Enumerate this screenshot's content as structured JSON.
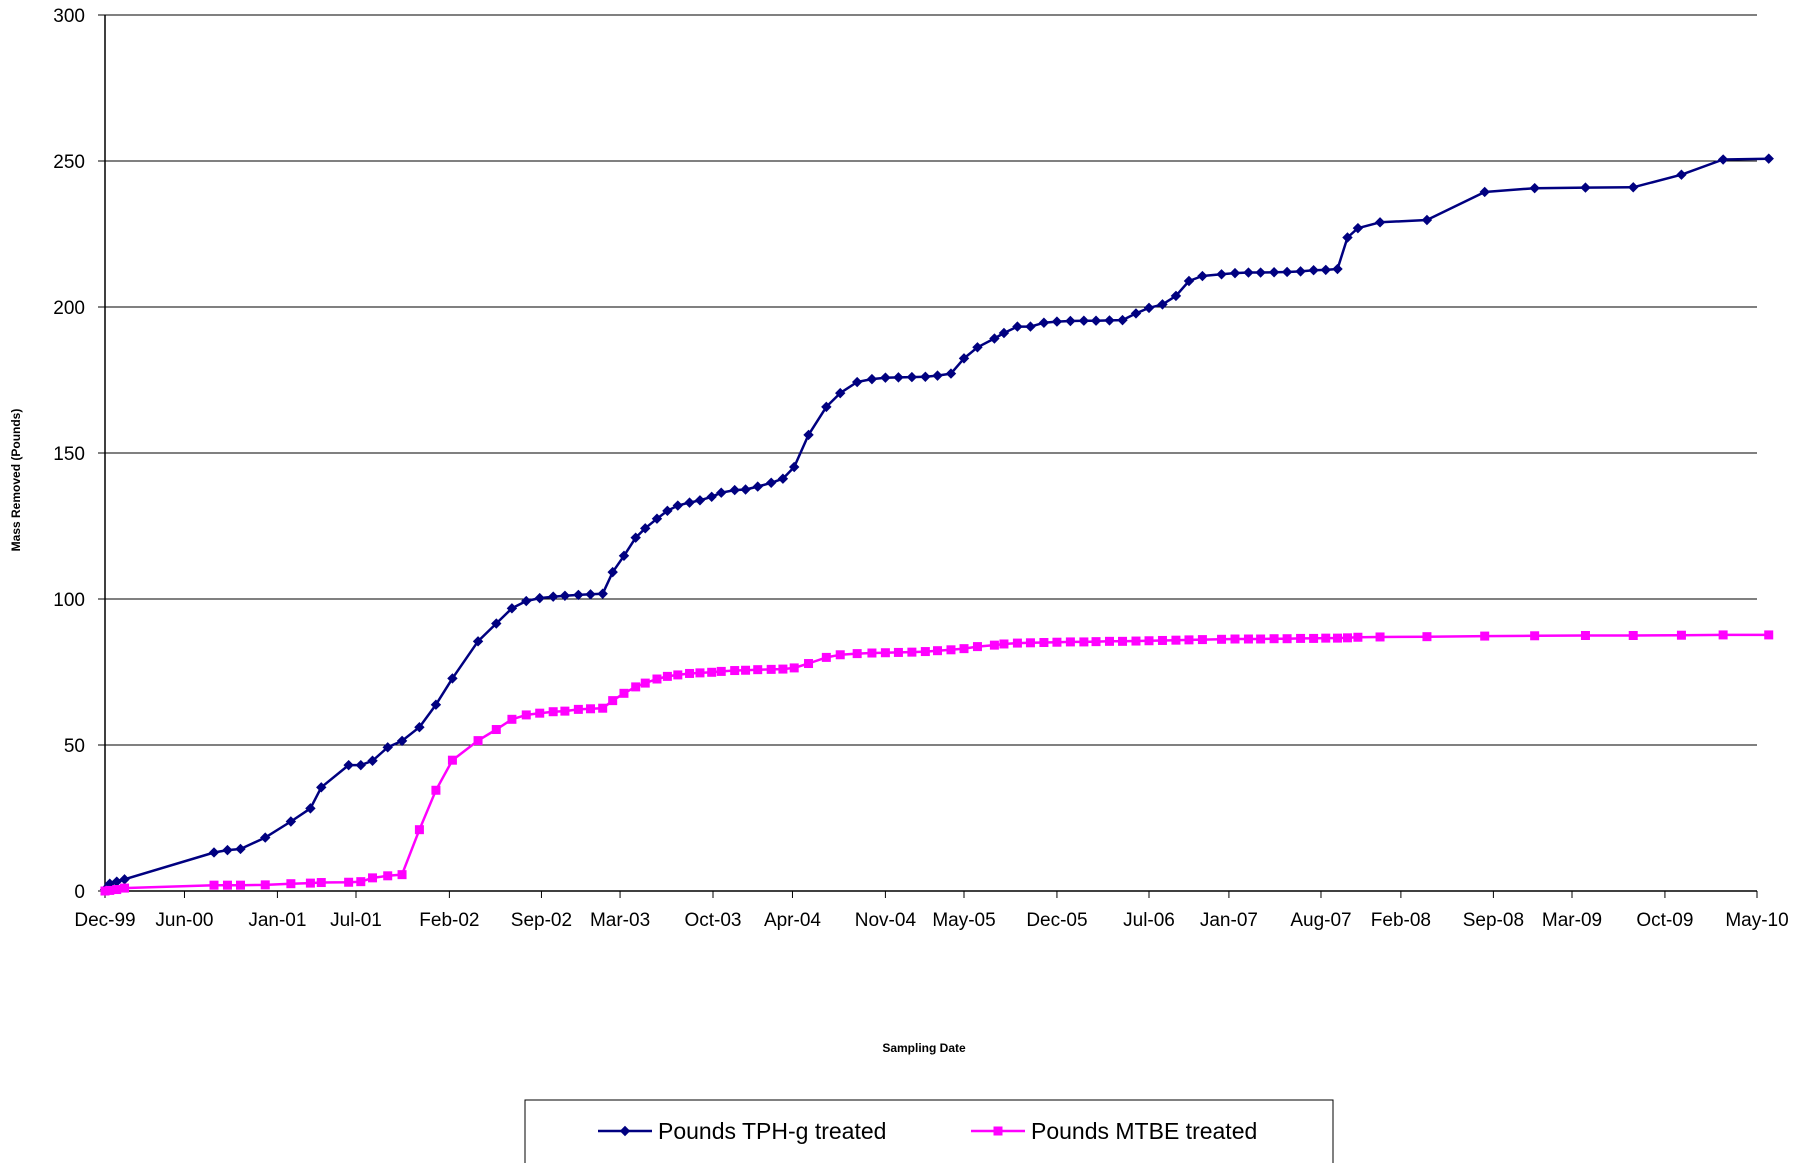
{
  "chart_data": {
    "type": "line",
    "title": "",
    "xlabel": "Sampling Date",
    "ylabel": "Mass Removed (Pounds)",
    "ylim": [
      0,
      300
    ],
    "yticks": [
      "0",
      "50",
      "100",
      "150",
      "200",
      "250",
      "300"
    ],
    "xlim": [
      "1999-12-01",
      "2010-05-01"
    ],
    "xticks": [
      {
        "label": "Dec-99",
        "date": "1999-12-01"
      },
      {
        "label": "Jun-00",
        "date": "2000-06-01"
      },
      {
        "label": "Jan-01",
        "date": "2001-01-01"
      },
      {
        "label": "Jul-01",
        "date": "2001-07-01"
      },
      {
        "label": "Feb-02",
        "date": "2002-02-01"
      },
      {
        "label": "Sep-02",
        "date": "2002-09-01"
      },
      {
        "label": "Mar-03",
        "date": "2003-03-01"
      },
      {
        "label": "Oct-03",
        "date": "2003-10-01"
      },
      {
        "label": "Apr-04",
        "date": "2004-04-01"
      },
      {
        "label": "Nov-04",
        "date": "2004-11-01"
      },
      {
        "label": "May-05",
        "date": "2005-05-01"
      },
      {
        "label": "Dec-05",
        "date": "2005-12-01"
      },
      {
        "label": "Jul-06",
        "date": "2006-07-01"
      },
      {
        "label": "Jan-07",
        "date": "2007-01-01"
      },
      {
        "label": "Aug-07",
        "date": "2007-08-01"
      },
      {
        "label": "Feb-08",
        "date": "2008-02-01"
      },
      {
        "label": "Sep-08",
        "date": "2008-09-01"
      },
      {
        "label": "Mar-09",
        "date": "2009-03-01"
      },
      {
        "label": "Oct-09",
        "date": "2009-10-01"
      },
      {
        "label": "May-10",
        "date": "2010-05-01"
      }
    ],
    "grid": "horizontal",
    "legend_position": "bottom",
    "series": [
      {
        "name": "Pounds TPH-g treated",
        "color": "#000080",
        "marker": "diamond",
        "points": [
          [
            "1999-12-01",
            0.5
          ],
          [
            "1999-12-12",
            2.5
          ],
          [
            "1999-12-28",
            3.2
          ],
          [
            "2000-01-15",
            4.0
          ],
          [
            "2000-08-08",
            13.2
          ],
          [
            "2000-09-08",
            14.0
          ],
          [
            "2000-10-08",
            14.4
          ],
          [
            "2000-12-04",
            18.3
          ],
          [
            "2001-02-01",
            23.8
          ],
          [
            "2001-03-18",
            28.3
          ],
          [
            "2001-04-12",
            35.5
          ],
          [
            "2001-06-14",
            43.1
          ],
          [
            "2001-07-12",
            43.1
          ],
          [
            "2001-08-08",
            44.6
          ],
          [
            "2001-09-12",
            49.2
          ],
          [
            "2001-10-15",
            51.4
          ],
          [
            "2001-11-24",
            56.1
          ],
          [
            "2002-01-01",
            63.8
          ],
          [
            "2002-02-08",
            72.8
          ],
          [
            "2002-04-08",
            85.5
          ],
          [
            "2002-05-20",
            91.6
          ],
          [
            "2002-06-25",
            96.8
          ],
          [
            "2002-07-28",
            99.3
          ],
          [
            "2002-08-28",
            100.3
          ],
          [
            "2002-09-28",
            100.8
          ],
          [
            "2002-10-25",
            101.1
          ],
          [
            "2002-11-25",
            101.4
          ],
          [
            "2002-12-23",
            101.6
          ],
          [
            "2003-01-20",
            101.8
          ],
          [
            "2003-02-12",
            109.2
          ],
          [
            "2003-03-10",
            114.8
          ],
          [
            "2003-04-06",
            121.0
          ],
          [
            "2003-04-28",
            124.2
          ],
          [
            "2003-05-25",
            127.5
          ],
          [
            "2003-06-18",
            130.2
          ],
          [
            "2003-07-12",
            132.0
          ],
          [
            "2003-08-08",
            133.0
          ],
          [
            "2003-09-01",
            133.8
          ],
          [
            "2003-09-28",
            135.0
          ],
          [
            "2003-10-20",
            136.4
          ],
          [
            "2003-11-20",
            137.3
          ],
          [
            "2003-12-15",
            137.5
          ],
          [
            "2004-01-12",
            138.5
          ],
          [
            "2004-02-12",
            139.8
          ],
          [
            "2004-03-10",
            141.2
          ],
          [
            "2004-04-05",
            145.2
          ],
          [
            "2004-05-08",
            156.2
          ],
          [
            "2004-06-18",
            165.8
          ],
          [
            "2004-07-20",
            170.5
          ],
          [
            "2004-08-28",
            174.3
          ],
          [
            "2004-10-01",
            175.3
          ],
          [
            "2004-11-01",
            175.8
          ],
          [
            "2004-12-01",
            175.9
          ],
          [
            "2005-01-01",
            176.0
          ],
          [
            "2005-02-01",
            176.1
          ],
          [
            "2005-03-01",
            176.5
          ],
          [
            "2005-04-01",
            177.2
          ],
          [
            "2005-05-01",
            182.4
          ],
          [
            "2005-06-01",
            186.2
          ],
          [
            "2005-07-10",
            189.2
          ],
          [
            "2005-08-01",
            191.1
          ],
          [
            "2005-09-01",
            193.3
          ],
          [
            "2005-10-01",
            193.3
          ],
          [
            "2005-11-01",
            194.6
          ],
          [
            "2005-12-01",
            195.0
          ],
          [
            "2006-01-01",
            195.2
          ],
          [
            "2006-02-01",
            195.3
          ],
          [
            "2006-03-01",
            195.3
          ],
          [
            "2006-04-01",
            195.4
          ],
          [
            "2006-05-01",
            195.5
          ],
          [
            "2006-06-01",
            197.8
          ],
          [
            "2006-07-01",
            199.7
          ],
          [
            "2006-08-01",
            200.9
          ],
          [
            "2006-09-01",
            203.8
          ],
          [
            "2006-10-01",
            208.9
          ],
          [
            "2006-11-01",
            210.6
          ],
          [
            "2006-12-15",
            211.2
          ],
          [
            "2007-01-15",
            211.6
          ],
          [
            "2007-02-15",
            211.8
          ],
          [
            "2007-03-15",
            211.8
          ],
          [
            "2007-04-15",
            211.9
          ],
          [
            "2007-05-15",
            212.0
          ],
          [
            "2007-06-15",
            212.2
          ],
          [
            "2007-07-15",
            212.6
          ],
          [
            "2007-08-12",
            212.7
          ],
          [
            "2007-09-08",
            213.0
          ],
          [
            "2007-10-01",
            223.8
          ],
          [
            "2007-10-25",
            227.0
          ],
          [
            "2007-12-15",
            229.0
          ],
          [
            "2008-04-01",
            229.8
          ],
          [
            "2008-08-12",
            239.4
          ],
          [
            "2008-12-05",
            240.7
          ],
          [
            "2009-04-01",
            240.9
          ],
          [
            "2009-07-20",
            241.0
          ],
          [
            "2009-11-08",
            245.3
          ],
          [
            "2010-02-12",
            250.5
          ],
          [
            "2010-05-28",
            250.8
          ]
        ]
      },
      {
        "name": "Pounds MTBE treated",
        "color": "#ff00ff",
        "marker": "square",
        "points": [
          [
            "1999-12-01",
            0.0
          ],
          [
            "1999-12-12",
            0.2
          ],
          [
            "1999-12-28",
            0.5
          ],
          [
            "2000-01-15",
            1.0
          ],
          [
            "2000-08-08",
            2.0
          ],
          [
            "2000-09-08",
            2.0
          ],
          [
            "2000-10-08",
            2.0
          ],
          [
            "2000-12-04",
            2.1
          ],
          [
            "2001-02-01",
            2.5
          ],
          [
            "2001-03-18",
            2.7
          ],
          [
            "2001-04-12",
            2.9
          ],
          [
            "2001-06-14",
            3.0
          ],
          [
            "2001-07-12",
            3.2
          ],
          [
            "2001-08-08",
            4.5
          ],
          [
            "2001-09-12",
            5.2
          ],
          [
            "2001-10-15",
            5.6
          ],
          [
            "2001-11-24",
            21.0
          ],
          [
            "2002-01-01",
            34.5
          ],
          [
            "2002-02-08",
            44.8
          ],
          [
            "2002-04-08",
            51.5
          ],
          [
            "2002-05-20",
            55.3
          ],
          [
            "2002-06-25",
            58.8
          ],
          [
            "2002-07-28",
            60.3
          ],
          [
            "2002-08-28",
            60.9
          ],
          [
            "2002-09-28",
            61.4
          ],
          [
            "2002-10-25",
            61.6
          ],
          [
            "2002-11-25",
            62.2
          ],
          [
            "2002-12-23",
            62.4
          ],
          [
            "2003-01-20",
            62.6
          ],
          [
            "2003-02-12",
            65.2
          ],
          [
            "2003-03-10",
            67.7
          ],
          [
            "2003-04-06",
            69.9
          ],
          [
            "2003-04-28",
            71.2
          ],
          [
            "2003-05-25",
            72.6
          ],
          [
            "2003-06-18",
            73.5
          ],
          [
            "2003-07-12",
            74.0
          ],
          [
            "2003-08-08",
            74.5
          ],
          [
            "2003-09-01",
            74.7
          ],
          [
            "2003-09-28",
            74.9
          ],
          [
            "2003-10-20",
            75.2
          ],
          [
            "2003-11-20",
            75.5
          ],
          [
            "2003-12-15",
            75.6
          ],
          [
            "2004-01-12",
            75.8
          ],
          [
            "2004-02-12",
            75.9
          ],
          [
            "2004-03-10",
            76.0
          ],
          [
            "2004-04-05",
            76.4
          ],
          [
            "2004-05-08",
            77.9
          ],
          [
            "2004-06-18",
            80.0
          ],
          [
            "2004-07-20",
            80.9
          ],
          [
            "2004-08-28",
            81.3
          ],
          [
            "2004-10-01",
            81.5
          ],
          [
            "2004-11-01",
            81.6
          ],
          [
            "2004-12-01",
            81.7
          ],
          [
            "2005-01-01",
            81.8
          ],
          [
            "2005-02-01",
            82.0
          ],
          [
            "2005-03-01",
            82.3
          ],
          [
            "2005-04-01",
            82.6
          ],
          [
            "2005-05-01",
            83.0
          ],
          [
            "2005-06-01",
            83.7
          ],
          [
            "2005-07-10",
            84.2
          ],
          [
            "2005-08-01",
            84.6
          ],
          [
            "2005-09-01",
            84.9
          ],
          [
            "2005-10-01",
            85.0
          ],
          [
            "2005-11-01",
            85.1
          ],
          [
            "2005-12-01",
            85.2
          ],
          [
            "2006-01-01",
            85.3
          ],
          [
            "2006-02-01",
            85.3
          ],
          [
            "2006-03-01",
            85.4
          ],
          [
            "2006-04-01",
            85.5
          ],
          [
            "2006-05-01",
            85.5
          ],
          [
            "2006-06-01",
            85.6
          ],
          [
            "2006-07-01",
            85.7
          ],
          [
            "2006-08-01",
            85.8
          ],
          [
            "2006-09-01",
            85.9
          ],
          [
            "2006-10-01",
            86.0
          ],
          [
            "2006-11-01",
            86.1
          ],
          [
            "2006-12-15",
            86.2
          ],
          [
            "2007-01-15",
            86.3
          ],
          [
            "2007-02-15",
            86.3
          ],
          [
            "2007-03-15",
            86.3
          ],
          [
            "2007-04-15",
            86.4
          ],
          [
            "2007-05-15",
            86.4
          ],
          [
            "2007-06-15",
            86.5
          ],
          [
            "2007-07-15",
            86.5
          ],
          [
            "2007-08-12",
            86.6
          ],
          [
            "2007-09-08",
            86.6
          ],
          [
            "2007-10-01",
            86.7
          ],
          [
            "2007-10-25",
            86.9
          ],
          [
            "2007-12-15",
            87.0
          ],
          [
            "2008-04-01",
            87.1
          ],
          [
            "2008-08-12",
            87.3
          ],
          [
            "2008-12-05",
            87.4
          ],
          [
            "2009-04-01",
            87.5
          ],
          [
            "2009-07-20",
            87.5
          ],
          [
            "2009-11-08",
            87.6
          ],
          [
            "2010-02-12",
            87.7
          ],
          [
            "2010-05-28",
            87.7
          ]
        ]
      }
    ]
  }
}
